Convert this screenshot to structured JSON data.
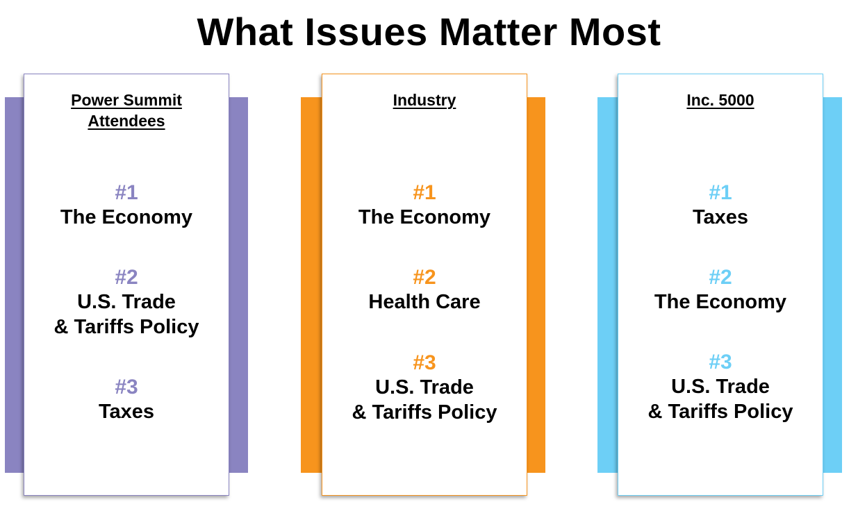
{
  "title": "What Issues Matter Most",
  "colors": {
    "purple": "#8a84c1",
    "orange": "#f7941d",
    "blue": "#6dcff6"
  },
  "columns": [
    {
      "heading": "Power Summit\nAttendees",
      "color": "#8a84c1",
      "ranks": [
        {
          "num": "#1",
          "label": "The Economy"
        },
        {
          "num": "#2",
          "label": "U.S. Trade\n& Tariffs Policy"
        },
        {
          "num": "#3",
          "label": "Taxes"
        }
      ]
    },
    {
      "heading": "Industry",
      "color": "#f7941d",
      "ranks": [
        {
          "num": "#1",
          "label": "The Economy"
        },
        {
          "num": "#2",
          "label": "Health Care"
        },
        {
          "num": "#3",
          "label": "U.S. Trade\n& Tariffs Policy"
        }
      ]
    },
    {
      "heading": "Inc. 5000",
      "color": "#6dcff6",
      "ranks": [
        {
          "num": "#1",
          "label": "Taxes"
        },
        {
          "num": "#2",
          "label": "The Economy"
        },
        {
          "num": "#3",
          "label": "U.S. Trade\n& Tariffs Policy"
        }
      ]
    }
  ]
}
